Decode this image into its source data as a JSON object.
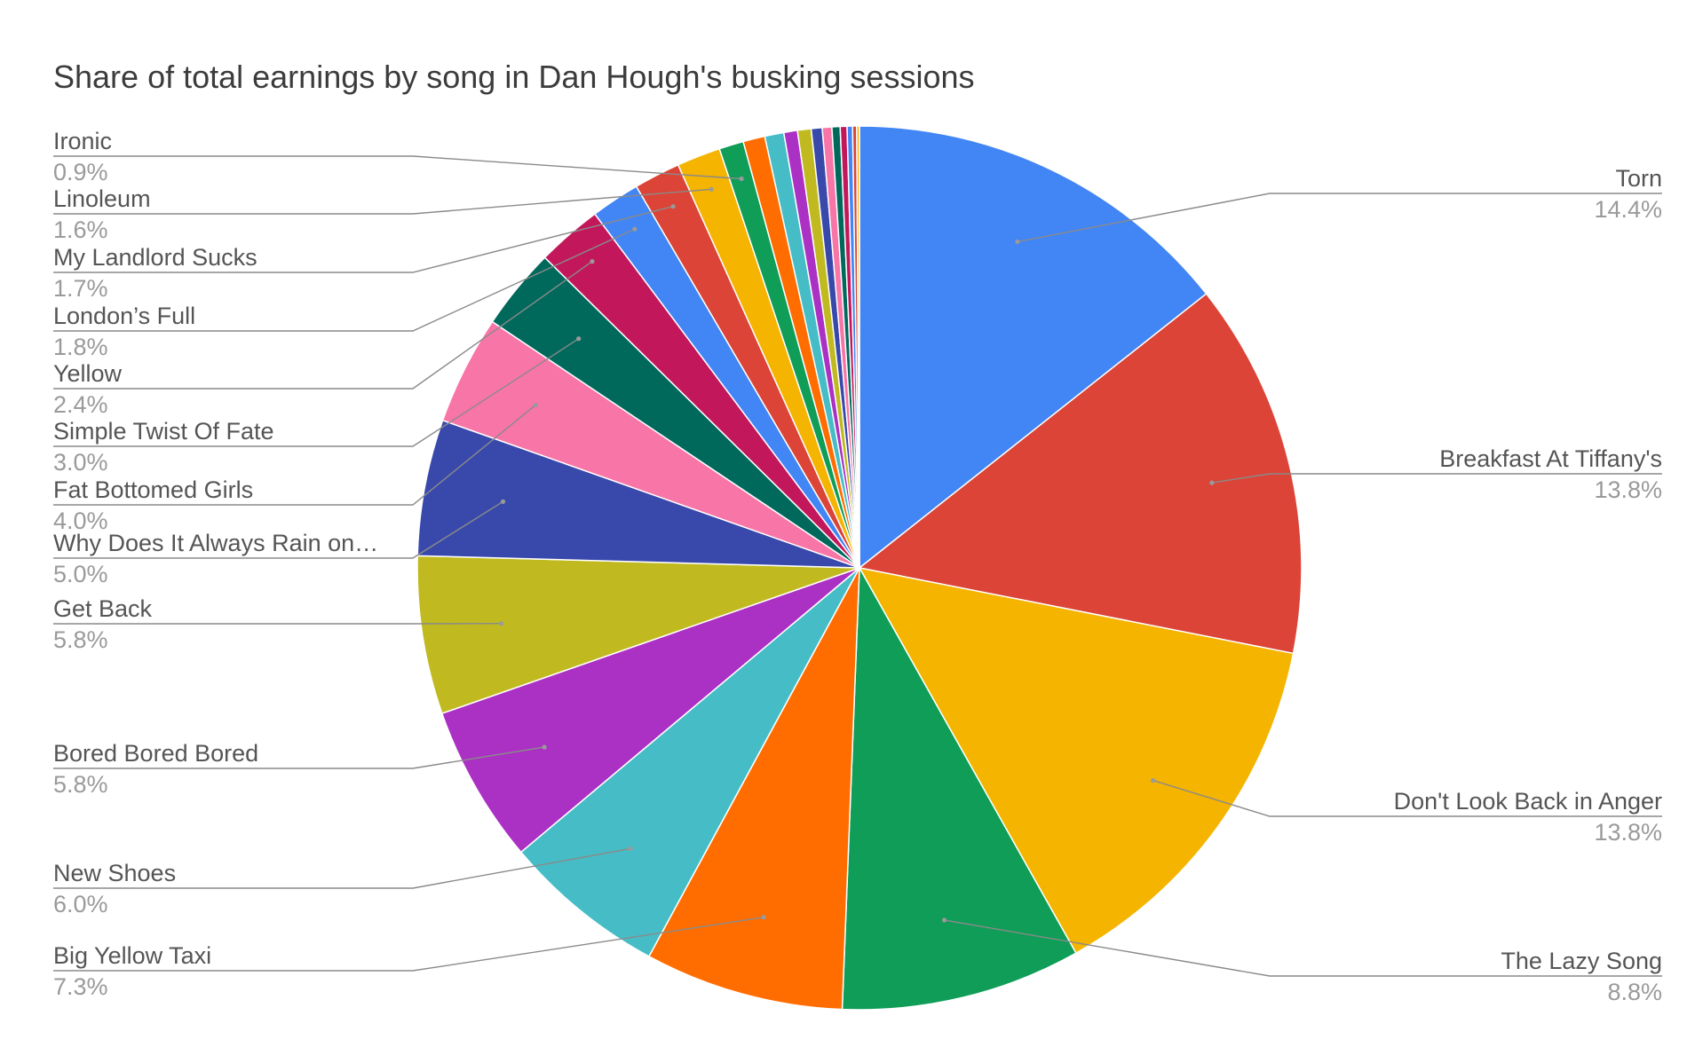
{
  "chart_data": {
    "type": "pie",
    "title": "Share of total earnings by song in Dan Hough's busking sessions",
    "slices": [
      {
        "name": "Torn",
        "value": 14.4,
        "label": "14.4%",
        "color": "#4285F4"
      },
      {
        "name": "Breakfast At Tiffany's",
        "value": 13.8,
        "label": "13.8%",
        "color": "#DB4437"
      },
      {
        "name": "Don't Look Back in Anger",
        "value": 13.8,
        "label": "13.8%",
        "color": "#F4B400"
      },
      {
        "name": "The Lazy Song",
        "value": 8.8,
        "label": "8.8%",
        "color": "#0F9D58"
      },
      {
        "name": "Big Yellow Taxi",
        "value": 7.3,
        "label": "7.3%",
        "color": "#FF6D00"
      },
      {
        "name": "New Shoes",
        "value": 6.0,
        "label": "6.0%",
        "color": "#46BDC6"
      },
      {
        "name": "Bored Bored Bored",
        "value": 5.8,
        "label": "5.8%",
        "color": "#AB30C4"
      },
      {
        "name": "Get Back",
        "value": 5.8,
        "label": "5.8%",
        "color": "#C0BA20"
      },
      {
        "name": "Why Does It Always Rain on…",
        "value": 5.0,
        "label": "5.0%",
        "color": "#3949AB"
      },
      {
        "name": "Fat Bottomed Girls",
        "value": 4.0,
        "label": "4.0%",
        "color": "#F875A7"
      },
      {
        "name": "Simple Twist Of Fate",
        "value": 3.0,
        "label": "3.0%",
        "color": "#00695C"
      },
      {
        "name": "Yellow",
        "value": 2.4,
        "label": "2.4%",
        "color": "#C2185B"
      },
      {
        "name": "London’s Full",
        "value": 1.8,
        "label": "1.8%",
        "color": "#4285F4"
      },
      {
        "name": "My Landlord Sucks",
        "value": 1.7,
        "label": "1.7%",
        "color": "#DB4437"
      },
      {
        "name": "Linoleum",
        "value": 1.6,
        "label": "1.6%",
        "color": "#F4B400"
      },
      {
        "name": "Ironic",
        "value": 0.9,
        "label": "0.9%",
        "color": "#0F9D58"
      },
      {
        "name": "",
        "value": 0.8,
        "label": "",
        "color": "#FF6D00"
      },
      {
        "name": "",
        "value": 0.7,
        "label": "",
        "color": "#46BDC6"
      },
      {
        "name": "",
        "value": 0.5,
        "label": "",
        "color": "#AB30C4"
      },
      {
        "name": "",
        "value": 0.5,
        "label": "",
        "color": "#C0BA20"
      },
      {
        "name": "",
        "value": 0.4,
        "label": "",
        "color": "#3949AB"
      },
      {
        "name": "",
        "value": 0.35,
        "label": "",
        "color": "#F875A7"
      },
      {
        "name": "",
        "value": 0.3,
        "label": "",
        "color": "#00695C"
      },
      {
        "name": "",
        "value": 0.25,
        "label": "",
        "color": "#C2185B"
      },
      {
        "name": "",
        "value": 0.2,
        "label": "",
        "color": "#4285F4"
      },
      {
        "name": "",
        "value": 0.15,
        "label": "",
        "color": "#DB4437"
      },
      {
        "name": "",
        "value": 0.1,
        "label": "",
        "color": "#F4B400"
      }
    ]
  }
}
